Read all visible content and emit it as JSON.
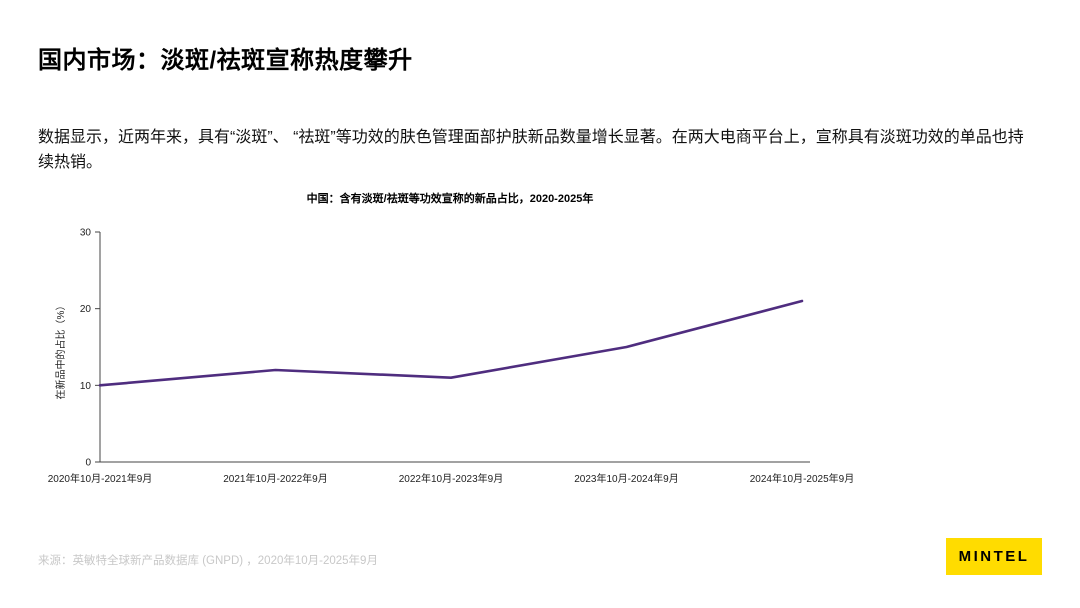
{
  "slide": {
    "title": "国内市场：淡斑/祛斑宣称热度攀升",
    "body": "数据显示，近两年来，具有“淡斑”、 “祛斑”等功效的肤色管理面部护肤新品数量增长显著。在两大电商平台上，宣称具有淡斑功效的单品也持续热销。",
    "source": "来源：英敏特全球新产品数据库 (GNPD) ，2020年10月-2025年9月",
    "logo_label": "MINTEL"
  },
  "chart_data": {
    "type": "line",
    "title": "中国：含有淡斑/祛斑等功效宣称的新品占比，2020-2025年",
    "categories": [
      "2020年10月-2021年9月",
      "2021年10月-2022年9月",
      "2022年10月-2023年9月",
      "2023年10月-2024年9月",
      "2024年10月-2025年9月"
    ],
    "values": [
      10,
      12,
      11,
      15,
      21
    ],
    "ylabel": "在新品中的占比（%）",
    "ylim": [
      0,
      30
    ],
    "yticks": [
      0,
      10,
      20,
      30
    ],
    "grid": false,
    "legend": false,
    "line_color": "#4F2D7F"
  },
  "colors": {
    "accent_purple": "#4F2D7F",
    "logo_yellow": "#FFDC00",
    "source_gray": "#C8C8C8",
    "axis": "#444444"
  }
}
